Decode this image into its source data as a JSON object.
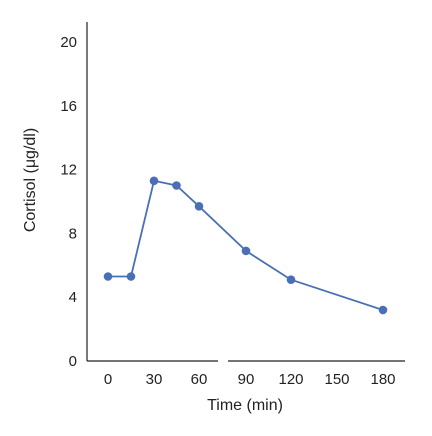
{
  "chart_data": {
    "type": "line",
    "xlabel": "Time (min)",
    "ylabel": "Cortisol (μg/dl)",
    "xlim": [
      0,
      180
    ],
    "ylim": [
      0,
      20
    ],
    "x_tick_labels": [
      "0",
      "30",
      "60",
      "90",
      "120",
      "150",
      "180"
    ],
    "x_ticks": [
      0,
      30,
      60,
      90,
      120,
      150,
      180
    ],
    "y_tick_labels": [
      "0",
      "4",
      "8",
      "12",
      "16",
      "20"
    ],
    "y_ticks": [
      0,
      4,
      8,
      12,
      16,
      20
    ],
    "x_axis_break_between": [
      60,
      90
    ],
    "grid": false,
    "series": [
      {
        "color": "#4a6fb5",
        "x": [
          0,
          15,
          30,
          45,
          60,
          90,
          120,
          180
        ],
        "y": [
          5.3,
          5.3,
          11.3,
          11.0,
          9.7,
          6.9,
          5.1,
          3.2
        ]
      }
    ]
  }
}
